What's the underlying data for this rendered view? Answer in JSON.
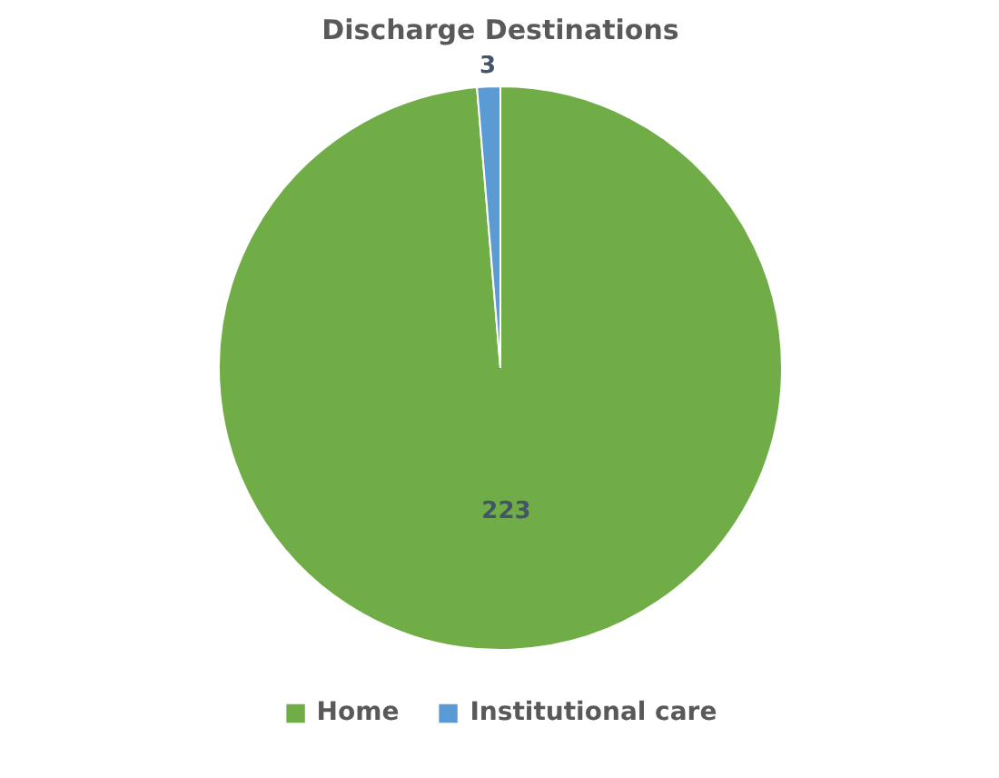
{
  "chart_data": {
    "type": "pie",
    "title": "Discharge Destinations",
    "categories": [
      "Home",
      "Institutional care"
    ],
    "values": [
      223,
      3
    ],
    "colors": [
      "#70ad47",
      "#5b9bd5"
    ],
    "data_labels": true,
    "legend": "bottom"
  }
}
